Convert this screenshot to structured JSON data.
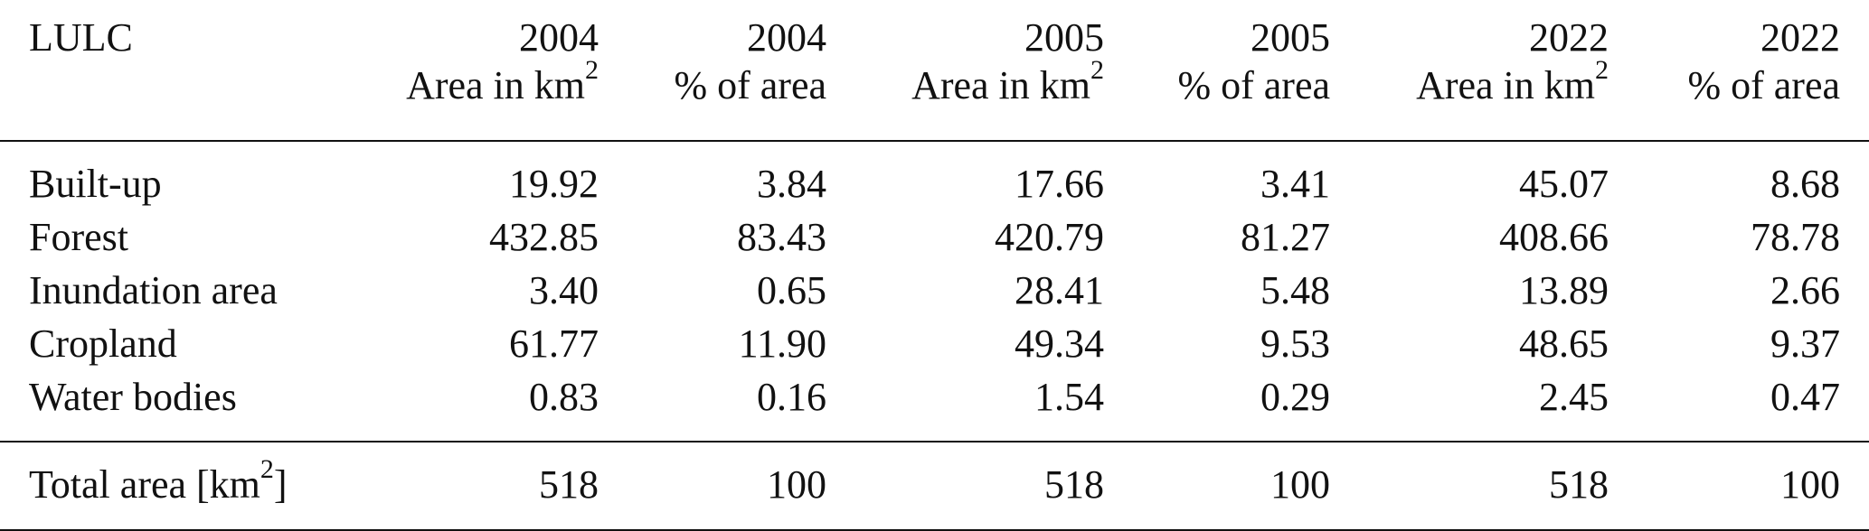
{
  "table": {
    "header_years": [
      "LULC",
      "2004",
      "2004",
      "2005",
      "2005",
      "2022",
      "2022"
    ],
    "header_units": {
      "area_prefix": "Area in km",
      "area_sup": "2",
      "pct": "% of area"
    },
    "rows": [
      {
        "lulc": "Built-up",
        "v2004_area": "19.92",
        "v2004_pct": "3.84",
        "v2005_area": "17.66",
        "v2005_pct": "3.41",
        "v2022_area": "45.07",
        "v2022_pct": "8.68"
      },
      {
        "lulc": "Forest",
        "v2004_area": "432.85",
        "v2004_pct": "83.43",
        "v2005_area": "420.79",
        "v2005_pct": "81.27",
        "v2022_area": "408.66",
        "v2022_pct": "78.78"
      },
      {
        "lulc": "Inundation area",
        "v2004_area": "3.40",
        "v2004_pct": "0.65",
        "v2005_area": "28.41",
        "v2005_pct": "5.48",
        "v2022_area": "13.89",
        "v2022_pct": "2.66"
      },
      {
        "lulc": "Cropland",
        "v2004_area": "61.77",
        "v2004_pct": "11.90",
        "v2005_area": "49.34",
        "v2005_pct": "9.53",
        "v2022_area": "48.65",
        "v2022_pct": "9.37"
      },
      {
        "lulc": "Water bodies",
        "v2004_area": "0.83",
        "v2004_pct": "0.16",
        "v2005_area": "1.54",
        "v2005_pct": "0.29",
        "v2022_area": "2.45",
        "v2022_pct": "0.47"
      }
    ],
    "total": {
      "label_prefix": "Total area [km",
      "label_sup": "2",
      "label_suffix": "]",
      "v2004_area": "518",
      "v2004_pct": "100",
      "v2005_area": "518",
      "v2005_pct": "100",
      "v2022_area": "518",
      "v2022_pct": "100"
    }
  }
}
